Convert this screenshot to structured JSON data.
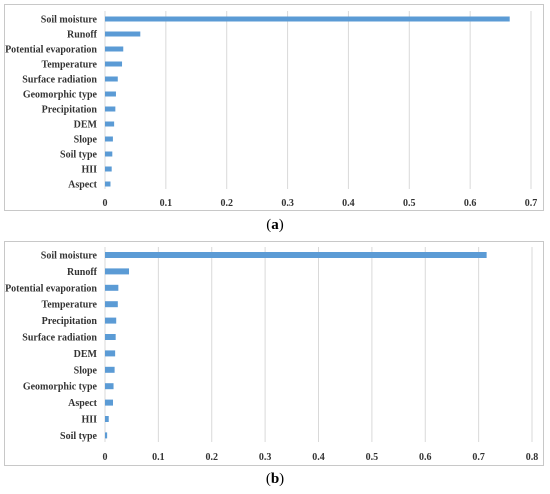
{
  "chart_data": [
    {
      "type": "bar",
      "orientation": "horizontal",
      "panel_label": "a",
      "categories": [
        "Soil moisture",
        "Runoff",
        "Potential evaporation",
        "Temperature",
        "Surface radiation",
        "Geomorphic type",
        "Precipitation",
        "DEM",
        "Slope",
        "Soil type",
        "HII",
        "Aspect"
      ],
      "values": [
        0.665,
        0.058,
        0.03,
        0.028,
        0.021,
        0.018,
        0.017,
        0.015,
        0.013,
        0.012,
        0.011,
        0.009
      ],
      "xlim": [
        0,
        0.7
      ],
      "xticks": [
        "0",
        "0.1",
        "0.2",
        "0.3",
        "0.4",
        "0.5",
        "0.6",
        "0.7"
      ],
      "grid": true,
      "bar_color": "#5b9bd5"
    },
    {
      "type": "bar",
      "orientation": "horizontal",
      "panel_label": "b",
      "categories": [
        "Soil moisture",
        "Runoff",
        "Potential evaporation",
        "Temperature",
        "Precipitation",
        "Surface radiation",
        "DEM",
        "Slope",
        "Geomorphic type",
        "Aspect",
        "HII",
        "Soil type"
      ],
      "values": [
        0.715,
        0.045,
        0.025,
        0.024,
        0.021,
        0.02,
        0.019,
        0.018,
        0.016,
        0.015,
        0.007,
        0.004
      ],
      "xlim": [
        0,
        0.8
      ],
      "xticks": [
        "0",
        "0.1",
        "0.2",
        "0.3",
        "0.4",
        "0.5",
        "0.6",
        "0.7",
        "0.8"
      ],
      "grid": true,
      "bar_color": "#5b9bd5"
    }
  ],
  "captions": [
    "a",
    "b"
  ]
}
